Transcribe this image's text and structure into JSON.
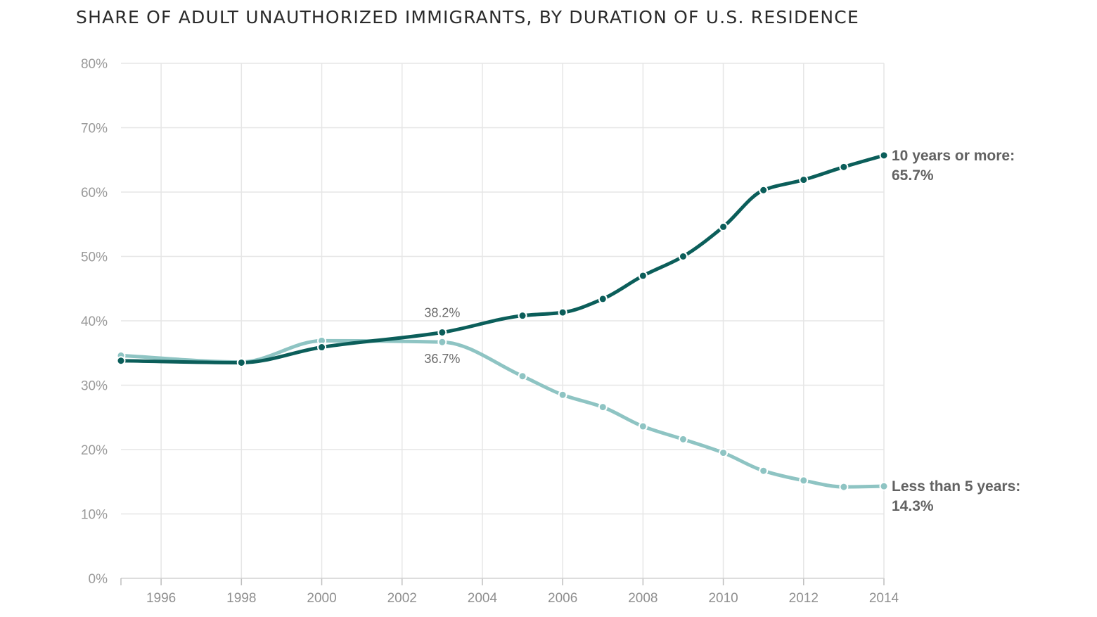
{
  "chart_data": {
    "type": "line",
    "title": "SHARE OF ADULT UNAUTHORIZED IMMIGRANTS, BY DURATION OF U.S. RESIDENCE",
    "xlabel": "",
    "ylabel": "",
    "xlim": [
      1995,
      2014
    ],
    "ylim": [
      0,
      80
    ],
    "x_ticks": [
      "1996",
      "1998",
      "2000",
      "2002",
      "2004",
      "2006",
      "2008",
      "2010",
      "2012",
      "2014"
    ],
    "y_ticks": [
      "0%",
      "10%",
      "20%",
      "30%",
      "40%",
      "50%",
      "60%",
      "70%",
      "80%"
    ],
    "grid": true,
    "legend": "none",
    "x": [
      1995,
      1998,
      2000,
      2003,
      2005,
      2006,
      2007,
      2008,
      2009,
      2010,
      2011,
      2012,
      2013,
      2014
    ],
    "series": [
      {
        "name": "10 years or more",
        "color": "#0b5e5a",
        "values": [
          33.8,
          33.5,
          35.9,
          38.2,
          40.8,
          41.3,
          43.4,
          47.0,
          50.0,
          54.6,
          60.3,
          61.9,
          63.9,
          65.7
        ],
        "end_label": [
          "10 years or more:",
          "65.7%"
        ]
      },
      {
        "name": "Less than 5 years",
        "color": "#8ec4c3",
        "values": [
          34.6,
          33.6,
          36.9,
          36.7,
          31.4,
          28.5,
          26.6,
          23.6,
          21.6,
          19.5,
          16.7,
          15.2,
          14.2,
          14.3
        ],
        "end_label": [
          "Less than 5 years:",
          "14.3%"
        ]
      }
    ],
    "annotations": [
      {
        "text": "38.2%",
        "x": 2003,
        "y": 38.2,
        "position": "above"
      },
      {
        "text": "36.7%",
        "x": 2003,
        "y": 36.7,
        "position": "below"
      }
    ]
  }
}
